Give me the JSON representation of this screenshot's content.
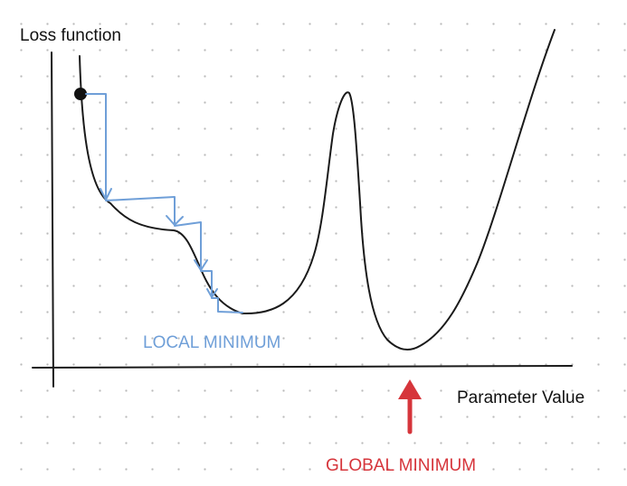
{
  "diagram": {
    "y_axis_label": "Loss function",
    "x_axis_label": "Parameter Value",
    "local_minimum_label": "LOCAL MINIMUM",
    "global_minimum_label": "GLOBAL MINIMUM"
  },
  "colors": {
    "curve": "#1a1a1a",
    "axes": "#1a1a1a",
    "descent_steps": "#6f9fd8",
    "local_minimum_text": "#6f9fd8",
    "global_minimum": "#d6353b",
    "grid_dots": "#b9b9b9"
  }
}
